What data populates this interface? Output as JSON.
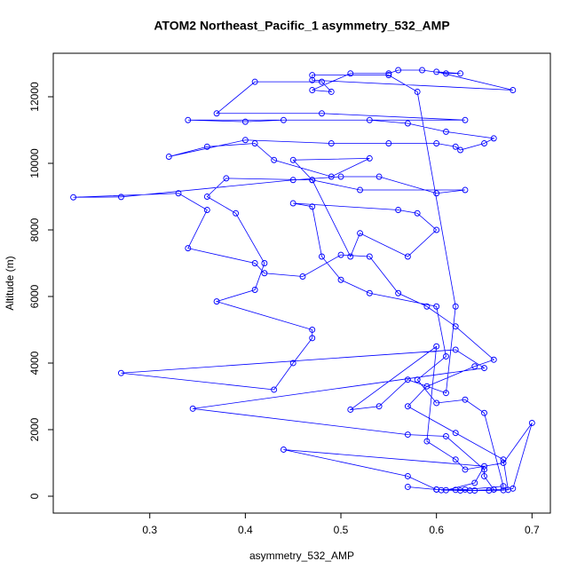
{
  "chart_data": {
    "type": "line",
    "title": "ATOM2 Northeast_Pacific_1 asymmetry_532_AMP",
    "x_label": "asymmetry_532_AMP",
    "y_label": "Altitude (m)",
    "color": "#0000ff",
    "markers": "open-circle",
    "xlim": [
      0.199,
      0.7192
    ],
    "ylim": [
      -507,
      13307
    ],
    "xticks": [
      0.3,
      0.4,
      0.5,
      0.6,
      0.7
    ],
    "yticks": [
      0,
      2000,
      4000,
      6000,
      8000,
      10000,
      12000
    ],
    "series": [
      {
        "name": "asymmetry_532_AMP",
        "color": "#0000ff",
        "x": [
          0.605,
          0.62,
          0.64,
          0.66,
          0.675,
          0.67,
          0.62,
          0.57,
          0.59,
          0.64,
          0.66,
          0.62,
          0.59,
          0.56,
          0.53,
          0.5,
          0.46,
          0.42,
          0.41,
          0.34,
          0.36,
          0.33,
          0.22,
          0.27,
          0.45,
          0.5,
          0.54,
          0.6,
          0.63,
          0.52,
          0.47,
          0.38,
          0.36,
          0.39,
          0.42,
          0.41,
          0.37,
          0.47,
          0.47,
          0.45,
          0.43,
          0.27,
          0.62,
          0.65,
          0.345,
          0.57,
          0.61,
          0.65,
          0.65,
          0.66,
          0.635,
          0.61,
          0.64,
          0.65,
          0.44,
          0.57,
          0.6,
          0.63,
          0.67,
          0.65,
          0.63,
          0.6,
          0.58,
          0.61,
          0.6,
          0.53,
          0.5,
          0.48,
          0.47,
          0.45,
          0.56,
          0.58,
          0.6,
          0.57,
          0.52,
          0.51,
          0.47,
          0.45,
          0.53,
          0.49,
          0.43,
          0.41,
          0.36,
          0.32,
          0.4,
          0.49,
          0.55,
          0.6,
          0.62,
          0.625,
          0.65,
          0.66,
          0.61,
          0.57,
          0.53,
          0.44,
          0.4,
          0.34,
          0.63,
          0.48,
          0.37,
          0.41,
          0.48,
          0.49,
          0.47,
          0.51,
          0.55,
          0.56,
          0.585,
          0.61,
          0.625,
          0.6,
          0.68,
          0.47,
          0.47,
          0.55,
          0.58,
          0.62,
          0.61,
          0.57,
          0.54,
          0.51,
          0.6,
          0.59,
          0.62,
          0.63,
          0.67,
          0.7,
          0.68,
          0.67,
          0.655,
          0.625,
          0.6,
          0.57
        ],
        "values": [
          180,
          190,
          170,
          200,
          190,
          1100,
          1900,
          2700,
          3300,
          3900,
          4100,
          5100,
          5700,
          6100,
          7200,
          7250,
          6600,
          6700,
          7000,
          7450,
          8600,
          9100,
          8980,
          8990,
          9500,
          9600,
          9600,
          9100,
          9200,
          9200,
          9500,
          9550,
          9000,
          8500,
          7000,
          6200,
          5850,
          5000,
          4750,
          4000,
          3200,
          3700,
          4400,
          3850,
          2630,
          1850,
          1800,
          800,
          600,
          200,
          170,
          180,
          400,
          900,
          1400,
          600,
          200,
          200,
          300,
          2500,
          2900,
          2800,
          3500,
          4200,
          5700,
          6100,
          6500,
          7200,
          8700,
          8800,
          8600,
          8500,
          8000,
          7200,
          7900,
          7200,
          9500,
          10100,
          10150,
          9600,
          10100,
          10600,
          10500,
          10200,
          10700,
          10600,
          10600,
          10600,
          10500,
          10400,
          10600,
          10750,
          10950,
          11200,
          11300,
          11300,
          11250,
          11300,
          11300,
          11500,
          11500,
          12450,
          12450,
          12150,
          12200,
          12700,
          12700,
          12800,
          12800,
          12700,
          12700,
          12750,
          12200,
          12500,
          12650,
          12650,
          12150,
          5700,
          3100,
          3500,
          2700,
          2600,
          4500,
          1650,
          1100,
          800,
          1000,
          2200,
          230,
          180,
          170,
          170,
          200,
          280
        ]
      }
    ]
  }
}
